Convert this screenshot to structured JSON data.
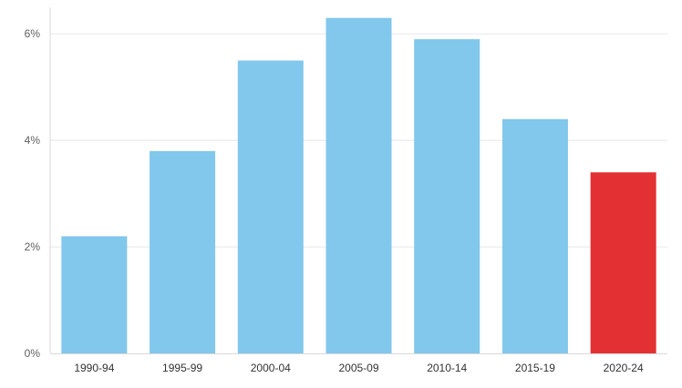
{
  "chart_data": {
    "type": "bar",
    "categories": [
      "1990-94",
      "1995-99",
      "2000-04",
      "2005-09",
      "2010-14",
      "2015-19",
      "2020-24"
    ],
    "values": [
      2.2,
      3.8,
      5.5,
      6.3,
      5.9,
      4.4,
      3.4
    ],
    "ylim": [
      0,
      6.5
    ],
    "yticks": [
      0,
      2,
      4,
      6
    ],
    "ytick_labels": [
      "0%",
      "2%",
      "4%",
      "6%"
    ],
    "grid": true,
    "colors": {
      "default": "#82c7ec",
      "highlight": "#e33032",
      "grid": "#e8e8e8",
      "axis": "#d9d9d9"
    },
    "highlight_index": 6
  }
}
